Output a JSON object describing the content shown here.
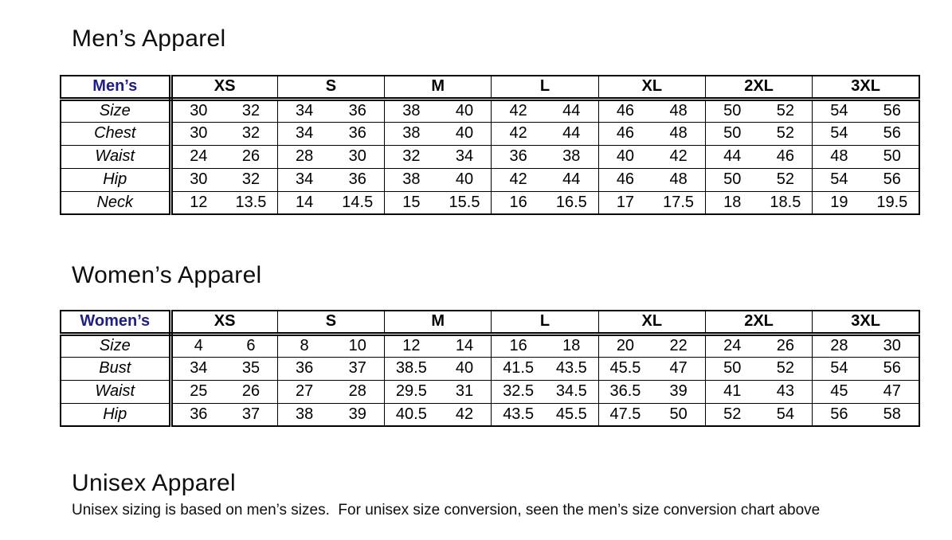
{
  "colors": {
    "corner_label": "#1e1e87",
    "border": "#000000",
    "text": "#000000"
  },
  "mens": {
    "heading": "Men’s Apparel",
    "table": {
      "corner_label": "Men’s",
      "sizes": [
        "XS",
        "S",
        "M",
        "L",
        "XL",
        "2XL",
        "3XL"
      ],
      "rows": [
        {
          "label": "Size",
          "values": [
            [
              "30",
              "32"
            ],
            [
              "34",
              "36"
            ],
            [
              "38",
              "40"
            ],
            [
              "42",
              "44"
            ],
            [
              "46",
              "48"
            ],
            [
              "50",
              "52"
            ],
            [
              "54",
              "56"
            ]
          ]
        },
        {
          "label": "Chest",
          "values": [
            [
              "30",
              "32"
            ],
            [
              "34",
              "36"
            ],
            [
              "38",
              "40"
            ],
            [
              "42",
              "44"
            ],
            [
              "46",
              "48"
            ],
            [
              "50",
              "52"
            ],
            [
              "54",
              "56"
            ]
          ]
        },
        {
          "label": "Waist",
          "values": [
            [
              "24",
              "26"
            ],
            [
              "28",
              "30"
            ],
            [
              "32",
              "34"
            ],
            [
              "36",
              "38"
            ],
            [
              "40",
              "42"
            ],
            [
              "44",
              "46"
            ],
            [
              "48",
              "50"
            ]
          ]
        },
        {
          "label": "Hip",
          "values": [
            [
              "30",
              "32"
            ],
            [
              "34",
              "36"
            ],
            [
              "38",
              "40"
            ],
            [
              "42",
              "44"
            ],
            [
              "46",
              "48"
            ],
            [
              "50",
              "52"
            ],
            [
              "54",
              "56"
            ]
          ]
        },
        {
          "label": "Neck",
          "values": [
            [
              "12",
              "13.5"
            ],
            [
              "14",
              "14.5"
            ],
            [
              "15",
              "15.5"
            ],
            [
              "16",
              "16.5"
            ],
            [
              "17",
              "17.5"
            ],
            [
              "18",
              "18.5"
            ],
            [
              "19",
              "19.5"
            ]
          ]
        }
      ]
    }
  },
  "womens": {
    "heading": "Women’s Apparel",
    "table": {
      "corner_label": "Women’s",
      "sizes": [
        "XS",
        "S",
        "M",
        "L",
        "XL",
        "2XL",
        "3XL"
      ],
      "rows": [
        {
          "label": "Size",
          "values": [
            [
              "4",
              "6"
            ],
            [
              "8",
              "10"
            ],
            [
              "12",
              "14"
            ],
            [
              "16",
              "18"
            ],
            [
              "20",
              "22"
            ],
            [
              "24",
              "26"
            ],
            [
              "28",
              "30"
            ]
          ]
        },
        {
          "label": "Bust",
          "values": [
            [
              "34",
              "35"
            ],
            [
              "36",
              "37"
            ],
            [
              "38.5",
              "40"
            ],
            [
              "41.5",
              "43.5"
            ],
            [
              "45.5",
              "47"
            ],
            [
              "50",
              "52"
            ],
            [
              "54",
              "56"
            ]
          ]
        },
        {
          "label": "Waist",
          "values": [
            [
              "25",
              "26"
            ],
            [
              "27",
              "28"
            ],
            [
              "29.5",
              "31"
            ],
            [
              "32.5",
              "34.5"
            ],
            [
              "36.5",
              "39"
            ],
            [
              "41",
              "43"
            ],
            [
              "45",
              "47"
            ]
          ]
        },
        {
          "label": "Hip",
          "values": [
            [
              "36",
              "37"
            ],
            [
              "38",
              "39"
            ],
            [
              "40.5",
              "42"
            ],
            [
              "43.5",
              "45.5"
            ],
            [
              "47.5",
              "50"
            ],
            [
              "52",
              "54"
            ],
            [
              "56",
              "58"
            ]
          ]
        }
      ]
    }
  },
  "unisex": {
    "heading": "Unisex Apparel",
    "note": "Unisex sizing is based on men’s sizes.  For unisex size conversion, seen the men’s size conversion chart above"
  }
}
